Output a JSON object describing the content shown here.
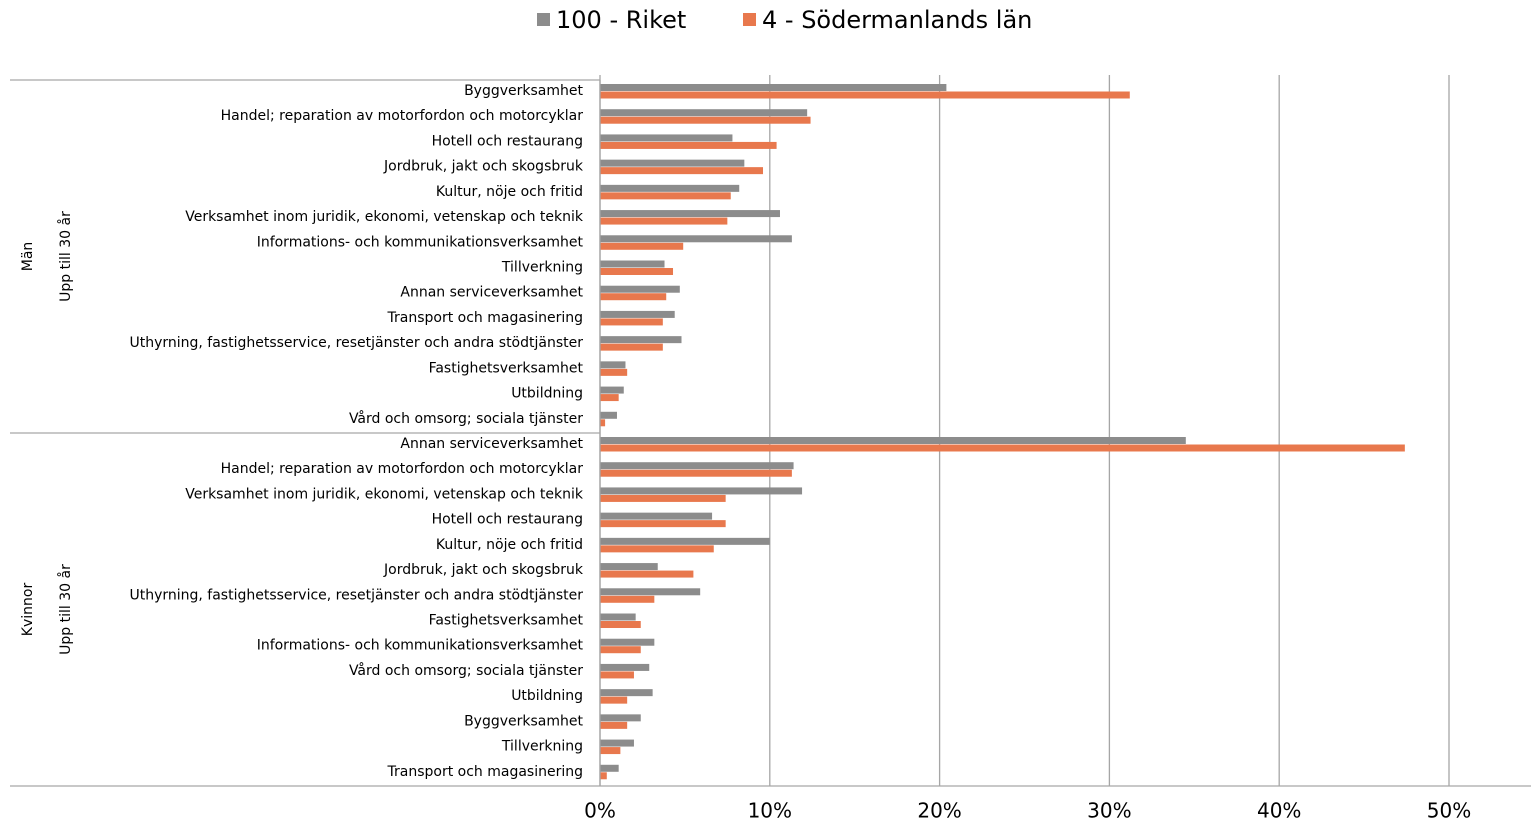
{
  "chart_data": {
    "type": "hbar",
    "legend": "top",
    "grid": true,
    "xlim": [
      0,
      55
    ],
    "xticks": [
      {
        "value": 0,
        "label": "0%"
      },
      {
        "value": 10,
        "label": "10%"
      },
      {
        "value": 20,
        "label": "20%"
      },
      {
        "value": 30,
        "label": "30%"
      },
      {
        "value": 40,
        "label": "40%"
      },
      {
        "value": 50,
        "label": "50%"
      }
    ],
    "groups": [
      {
        "name": "Män",
        "subgroup": "Upp till 30 år",
        "categories": [
          "Byggverksamhet",
          "Handel; reparation av motorfordon och motorcyklar",
          "Hotell och restaurang",
          "Jordbruk, jakt och skogsbruk",
          "Kultur, nöje och fritid",
          "Verksamhet inom juridik, ekonomi, vetenskap och teknik",
          "Informations- och kommunikationsverksamhet",
          "Tillverkning",
          "Annan serviceverksamhet",
          "Transport och magasinering",
          "Uthyrning, fastighetsservice, resetjänster och andra stödtjänster",
          "Fastighetsverksamhet",
          "Utbildning",
          "Vård och omsorg; sociala tjänster"
        ]
      },
      {
        "name": "Kvinnor",
        "subgroup": "Upp till 30 år",
        "categories": [
          "Annan serviceverksamhet",
          "Handel; reparation av motorfordon och motorcyklar",
          "Verksamhet inom juridik, ekonomi, vetenskap och teknik",
          "Hotell och restaurang",
          "Kultur, nöje och fritid",
          "Jordbruk, jakt och skogsbruk",
          "Uthyrning, fastighetsservice, resetjänster och andra stödtjänster",
          "Fastighetsverksamhet",
          "Informations- och kommunikationsverksamhet",
          "Vård och omsorg; sociala tjänster",
          "Utbildning",
          "Byggverksamhet",
          "Tillverkning",
          "Transport och magasinering"
        ]
      }
    ],
    "series": [
      {
        "name": "100 - Riket",
        "color": "#8c8c8c",
        "values": [
          [
            20.4,
            12.2,
            7.8,
            8.5,
            8.2,
            10.6,
            11.3,
            3.8,
            4.7,
            4.4,
            4.8,
            1.5,
            1.4,
            1.0
          ],
          [
            34.5,
            11.4,
            11.9,
            6.6,
            10.0,
            3.4,
            5.9,
            2.1,
            3.2,
            2.9,
            3.1,
            2.4,
            2.0,
            1.1
          ]
        ]
      },
      {
        "name": "4 - Södermanlands län",
        "color": "#e8784d",
        "values": [
          [
            31.2,
            12.4,
            10.4,
            9.6,
            7.7,
            7.5,
            4.9,
            4.3,
            3.9,
            3.7,
            3.7,
            1.6,
            1.1,
            0.3
          ],
          [
            47.4,
            11.3,
            7.4,
            7.4,
            6.7,
            5.5,
            3.2,
            2.4,
            2.4,
            2.0,
            1.6,
            1.6,
            1.2,
            0.4
          ]
        ]
      }
    ]
  }
}
